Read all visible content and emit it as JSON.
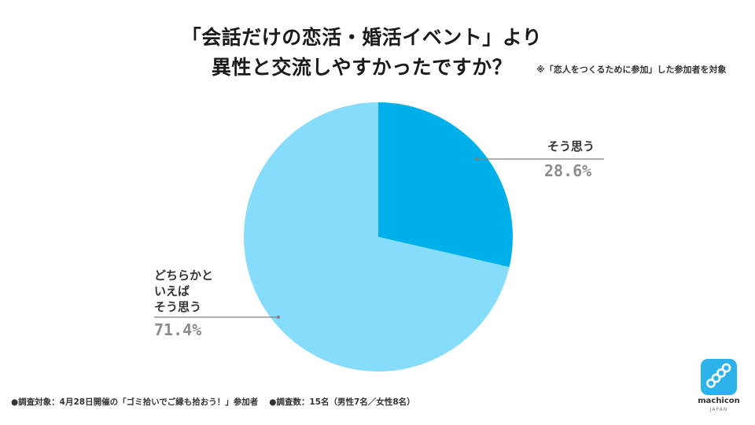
{
  "title_line1": "「会話だけの恋活・婚活イベント」より",
  "title_line2": "異性と交流しやすかったですか？",
  "note": "※「恋人をつくるために参加」した参加者を対象",
  "chart_data": {
    "type": "pie",
    "title": "「会話だけの恋活・婚活イベント」より 異性と交流しやすかったですか？",
    "slices": [
      {
        "label": "そう思う",
        "value": 28.6,
        "value_label": "28.6%",
        "color": "#00b0eb"
      },
      {
        "label": "どちらかといえばそう思う",
        "label_lines": [
          "どちらかと",
          "いえば",
          "そう思う"
        ],
        "value": 71.4,
        "value_label": "71.4%",
        "color": "#86ddfb"
      }
    ],
    "start_angle": "12 o'clock",
    "direction": "clockwise"
  },
  "footer_left": "●調査対象：4月28日開催の「ゴミ拾いでご縁も拾おう！」参加者",
  "footer_right": "●調査数：15名（男性7名／女性8名）",
  "logo": {
    "text": "machicon",
    "sub": "JAPAN",
    "color": "#2cb3ea"
  }
}
